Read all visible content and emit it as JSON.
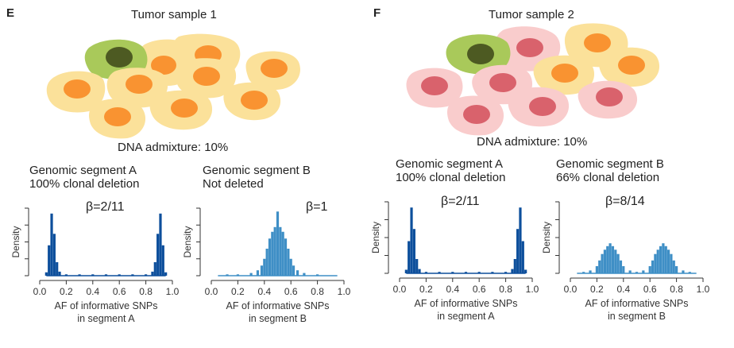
{
  "panels": [
    {
      "letter": "E",
      "title": "Tumor sample 1",
      "admixture": "DNA admixture: 10%",
      "colors": {
        "normal_cell": "#a9c95a",
        "normal_nucleus": "#4d5a22",
        "tumor_cell": "#fbe19a",
        "tumor_nucleus": "#f99331"
      },
      "histograms": [
        {
          "seg_line1": "Genomic segment A",
          "seg_line2": "100% clonal deletion",
          "beta": "β=2/11",
          "xlabel_line1": "AF of informative SNPs",
          "xlabel_line2": "in segment A",
          "ylabel": "Density"
        },
        {
          "seg_line1": "Genomic segment B",
          "seg_line2": "Not deleted",
          "beta": "β=1",
          "xlabel_line1": "AF of informative SNPs",
          "xlabel_line2": "in segment B",
          "ylabel": "Density"
        }
      ]
    },
    {
      "letter": "F",
      "title": "Tumor sample 2",
      "admixture": "DNA admixture: 10%",
      "colors": {
        "normal_cell": "#a9c95a",
        "normal_nucleus": "#4d5a22",
        "tumor_cell": "#fbe19a",
        "tumor_nucleus": "#f99331",
        "subclone_cell": "#f9cccc",
        "subclone_nucleus": "#d9626c"
      },
      "histograms": [
        {
          "seg_line1": "Genomic segment A",
          "seg_line2": "100% clonal deletion",
          "beta": "β=2/11",
          "xlabel_line1": "AF of informative SNPs",
          "xlabel_line2": "in segment A",
          "ylabel": "Density"
        },
        {
          "seg_line1": "Genomic segment B",
          "seg_line2": "66% clonal  deletion",
          "beta": "β=8/14",
          "xlabel_line1": "AF of informative SNPs",
          "xlabel_line2": "in segment B",
          "ylabel": "Density"
        }
      ]
    }
  ],
  "chart_data": [
    {
      "type": "bar",
      "panel": "E",
      "title": "Genomic segment A",
      "xlabel": "AF of informative SNPs in segment A",
      "ylabel": "Density",
      "xlim": [
        0,
        1
      ],
      "xticks": [
        "0.0",
        "0.2",
        "0.4",
        "0.6",
        "0.8",
        "1.0"
      ],
      "color": "#0d4f9c",
      "x": [
        0.05,
        0.07,
        0.09,
        0.11,
        0.13,
        0.15,
        0.2,
        0.3,
        0.4,
        0.5,
        0.6,
        0.7,
        0.8,
        0.85,
        0.87,
        0.89,
        0.91,
        0.93,
        0.95
      ],
      "values": [
        0.05,
        0.45,
        0.92,
        0.62,
        0.2,
        0.06,
        0.02,
        0.02,
        0.02,
        0.02,
        0.02,
        0.02,
        0.02,
        0.06,
        0.2,
        0.62,
        0.92,
        0.45,
        0.05
      ]
    },
    {
      "type": "bar",
      "panel": "E",
      "title": "Genomic segment B",
      "xlabel": "AF of informative SNPs in segment B",
      "ylabel": "Density",
      "xlim": [
        0,
        1
      ],
      "xticks": [
        "0.0",
        "0.2",
        "0.4",
        "0.6",
        "0.8",
        "1.0"
      ],
      "color": "#3f8fc6",
      "x": [
        0.12,
        0.2,
        0.3,
        0.35,
        0.38,
        0.4,
        0.42,
        0.44,
        0.46,
        0.48,
        0.5,
        0.52,
        0.54,
        0.56,
        0.58,
        0.6,
        0.62,
        0.65,
        0.7,
        0.8
      ],
      "values": [
        0.02,
        0.02,
        0.04,
        0.08,
        0.15,
        0.25,
        0.4,
        0.55,
        0.65,
        0.72,
        0.95,
        0.72,
        0.65,
        0.55,
        0.4,
        0.25,
        0.15,
        0.08,
        0.04,
        0.02
      ]
    },
    {
      "type": "bar",
      "panel": "F",
      "title": "Genomic segment A",
      "xlabel": "AF of informative SNPs in segment A",
      "ylabel": "Density",
      "xlim": [
        0,
        1
      ],
      "xticks": [
        "0.0",
        "0.2",
        "0.4",
        "0.6",
        "0.8",
        "1.0"
      ],
      "color": "#0d4f9c",
      "x": [
        0.05,
        0.07,
        0.09,
        0.11,
        0.13,
        0.15,
        0.2,
        0.3,
        0.4,
        0.5,
        0.6,
        0.7,
        0.8,
        0.85,
        0.87,
        0.89,
        0.91,
        0.93,
        0.95
      ],
      "values": [
        0.05,
        0.45,
        0.92,
        0.62,
        0.2,
        0.06,
        0.02,
        0.02,
        0.02,
        0.02,
        0.02,
        0.02,
        0.02,
        0.06,
        0.2,
        0.62,
        0.92,
        0.45,
        0.05
      ]
    },
    {
      "type": "bar",
      "panel": "F",
      "title": "Genomic segment B",
      "xlabel": "AF of informative SNPs in segment B",
      "ylabel": "Density",
      "xlim": [
        0,
        1
      ],
      "xticks": [
        "0.0",
        "0.2",
        "0.4",
        "0.6",
        "0.8",
        "1.0"
      ],
      "color": "#3f8fc6",
      "x": [
        0.1,
        0.15,
        0.2,
        0.22,
        0.24,
        0.26,
        0.28,
        0.3,
        0.32,
        0.34,
        0.36,
        0.38,
        0.4,
        0.45,
        0.5,
        0.55,
        0.6,
        0.62,
        0.64,
        0.66,
        0.68,
        0.7,
        0.72,
        0.74,
        0.76,
        0.78,
        0.8,
        0.85,
        0.9
      ],
      "values": [
        0.02,
        0.04,
        0.1,
        0.18,
        0.27,
        0.33,
        0.38,
        0.42,
        0.38,
        0.33,
        0.27,
        0.18,
        0.1,
        0.04,
        0.02,
        0.04,
        0.1,
        0.18,
        0.27,
        0.33,
        0.38,
        0.42,
        0.38,
        0.33,
        0.27,
        0.18,
        0.1,
        0.04,
        0.02
      ]
    }
  ]
}
